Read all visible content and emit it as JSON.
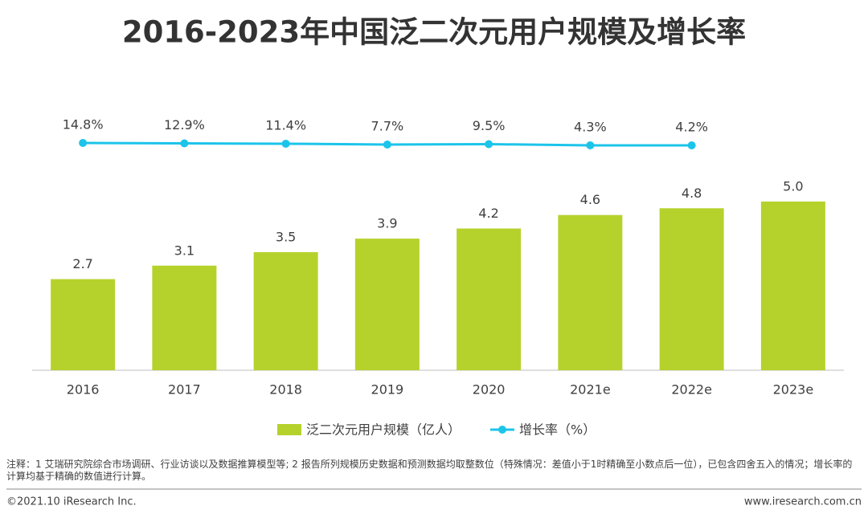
{
  "chart_data": {
    "type": "bar",
    "title": "2016-2023年中国泛二次元用户规模及增长率",
    "categories": [
      "2016",
      "2017",
      "2018",
      "2019",
      "2020",
      "2021e",
      "2022e",
      "2023e"
    ],
    "series": [
      {
        "name": "泛二次元用户规模（亿人）",
        "type": "bar",
        "color": "#b5d22c",
        "values": [
          2.7,
          3.1,
          3.5,
          3.9,
          4.2,
          4.6,
          4.8,
          5.0
        ],
        "value_labels": [
          "2.7",
          "3.1",
          "3.5",
          "3.9",
          "4.2",
          "4.6",
          "4.8",
          "5.0"
        ]
      },
      {
        "name": "增长率（%）",
        "type": "line",
        "axis": "y2",
        "color": "#1cc4ea",
        "values": [
          14.8,
          12.9,
          11.4,
          7.7,
          9.5,
          4.3,
          4.2,
          null
        ],
        "value_labels": [
          "14.8%",
          "12.9%",
          "11.4%",
          "7.7%",
          "9.5%",
          "4.3%",
          "4.2%",
          null
        ]
      }
    ],
    "ylim": [
      0,
      7.64
    ],
    "y2lim": [
      -985,
      149
    ],
    "legend": "bottom"
  },
  "note": "注释：1 艾瑞研究院综合市场调研、行业访谈以及数据推算模型等; 2 报告所列规模历史数据和预测数据均取整数位（特殊情况：差值小于1时精确至小数点后一位），已包含四舍五入的情况；增长率的计算均基于精确的数值进行计算。",
  "footer": {
    "copyright": "©2021.10 iResearch Inc.",
    "website": "www.iresearch.com.cn"
  }
}
